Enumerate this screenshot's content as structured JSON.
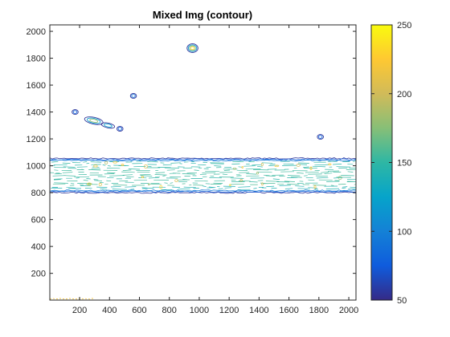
{
  "chart_data": {
    "type": "contour",
    "title": "Mixed Img (contour)",
    "xlabel": "",
    "ylabel": "",
    "xlim": [
      1,
      2048
    ],
    "ylim": [
      1,
      2048
    ],
    "xticks": [
      200,
      400,
      600,
      800,
      1000,
      1200,
      1400,
      1600,
      1800,
      2000
    ],
    "yticks": [
      200,
      400,
      600,
      800,
      1000,
      1200,
      1400,
      1600,
      1800,
      2000
    ],
    "colorbar": {
      "range": [
        50,
        250
      ],
      "ticks": [
        50,
        100,
        150,
        200,
        250
      ],
      "colormap": "parula",
      "stops": [
        "#352a87",
        "#0f5cdd",
        "#1481d6",
        "#06a4ca",
        "#2eb7a4",
        "#87bf77",
        "#d1bb59",
        "#fec832",
        "#f9fb0e"
      ]
    },
    "features": {
      "band": {
        "x": [
          1,
          2048
        ],
        "y": [
          800,
          1055
        ],
        "level": 150
      },
      "isolated_blobs": [
        {
          "x": 955,
          "y": 1875,
          "level": 230
        },
        {
          "x": 295,
          "y": 1335,
          "level": 180
        },
        {
          "x": 390,
          "y": 1300,
          "level": 120
        },
        {
          "x": 560,
          "y": 1520,
          "level": 90
        },
        {
          "x": 170,
          "y": 1400,
          "level": 80
        },
        {
          "x": 470,
          "y": 1275,
          "level": 80
        },
        {
          "x": 1810,
          "y": 1215,
          "level": 80
        }
      ],
      "bottom_strip": {
        "x": [
          1,
          300
        ],
        "y": [
          0,
          15
        ],
        "level": 220
      }
    },
    "grid": false,
    "legend": "none"
  }
}
